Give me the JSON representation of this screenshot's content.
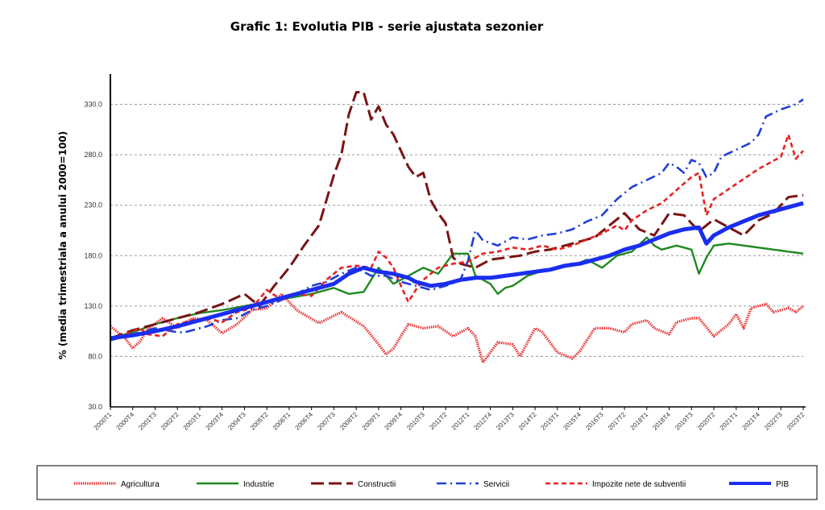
{
  "title": "Grafic 1: Evolutia PIB - serie ajustata sezonier",
  "chart_data": {
    "type": "line",
    "title": "Grafic 1: Evolutia PIB - serie ajustata sezonier",
    "ylabel": "% (media trimestriala a anului 2000=100)",
    "xlabel": "",
    "ylim": [
      30,
      360
    ],
    "yticks": [
      "30.0",
      "80.0",
      "130.0",
      "180.0",
      "230.0",
      "280.0",
      "330.0"
    ],
    "ytick_values": [
      30,
      80,
      130,
      180,
      230,
      280,
      330
    ],
    "grid": "horizontal dashed",
    "legend_position": "bottom",
    "xtick_labels": [
      "2000T1",
      "2000T4",
      "2001T3",
      "2002T2",
      "2003T1",
      "2003T4",
      "2004T3",
      "2005T2",
      "2006T1",
      "2006T4",
      "2007T3",
      "2008T2",
      "2009T1",
      "2009T4",
      "2010T3",
      "2011T2",
      "2012T1",
      "2012T4",
      "2013T3",
      "2014T2",
      "2015T1",
      "2015T4",
      "2016T3",
      "2017T2",
      "2018T1",
      "2018T4",
      "2019T3",
      "2020T2",
      "2021T1",
      "2021T4",
      "2022T3",
      "2023T2"
    ],
    "n_quarters": 94,
    "series": [
      {
        "name": "Agricultura",
        "color": "#e83030",
        "style": "dotted-thick",
        "anchors": [
          [
            0,
            110
          ],
          [
            2,
            98
          ],
          [
            3,
            88
          ],
          [
            4,
            95
          ],
          [
            5,
            107
          ],
          [
            7,
            118
          ],
          [
            9,
            108
          ],
          [
            11,
            118
          ],
          [
            13,
            116
          ],
          [
            15,
            103
          ],
          [
            17,
            112
          ],
          [
            19,
            126
          ],
          [
            21,
            128
          ],
          [
            23,
            142
          ],
          [
            25,
            126
          ],
          [
            28,
            113
          ],
          [
            31,
            124
          ],
          [
            34,
            110
          ],
          [
            36,
            92
          ],
          [
            37,
            82
          ],
          [
            38,
            88
          ],
          [
            40,
            112
          ],
          [
            42,
            108
          ],
          [
            44,
            110
          ],
          [
            46,
            100
          ],
          [
            48,
            108
          ],
          [
            49,
            100
          ],
          [
            50,
            74
          ],
          [
            52,
            94
          ],
          [
            54,
            92
          ],
          [
            55,
            80
          ],
          [
            57,
            108
          ],
          [
            58,
            104
          ],
          [
            60,
            84
          ],
          [
            62,
            78
          ],
          [
            63,
            85
          ],
          [
            65,
            108
          ],
          [
            67,
            108
          ],
          [
            69,
            104
          ],
          [
            70,
            112
          ],
          [
            72,
            116
          ],
          [
            73,
            108
          ],
          [
            75,
            102
          ],
          [
            76,
            114
          ],
          [
            78,
            118
          ],
          [
            79,
            118
          ],
          [
            81,
            100
          ],
          [
            83,
            112
          ],
          [
            84,
            122
          ],
          [
            85,
            108
          ],
          [
            86,
            128
          ],
          [
            88,
            132
          ],
          [
            89,
            124
          ],
          [
            91,
            128
          ],
          [
            92,
            124
          ],
          [
            93,
            130
          ]
        ]
      },
      {
        "name": "Industrie",
        "color": "#1f8a1f",
        "style": "solid",
        "anchors": [
          [
            0,
            98
          ],
          [
            3,
            104
          ],
          [
            6,
            112
          ],
          [
            9,
            118
          ],
          [
            12,
            123
          ],
          [
            15,
            126
          ],
          [
            18,
            130
          ],
          [
            21,
            134
          ],
          [
            24,
            138
          ],
          [
            27,
            142
          ],
          [
            30,
            148
          ],
          [
            32,
            142
          ],
          [
            34,
            144
          ],
          [
            36,
            168
          ],
          [
            38,
            152
          ],
          [
            40,
            160
          ],
          [
            42,
            168
          ],
          [
            44,
            162
          ],
          [
            46,
            182
          ],
          [
            48,
            182
          ],
          [
            49,
            160
          ],
          [
            51,
            152
          ],
          [
            52,
            142
          ],
          [
            53,
            148
          ],
          [
            54,
            150
          ],
          [
            56,
            160
          ],
          [
            58,
            165
          ],
          [
            60,
            168
          ],
          [
            62,
            170
          ],
          [
            64,
            176
          ],
          [
            66,
            168
          ],
          [
            68,
            180
          ],
          [
            70,
            184
          ],
          [
            72,
            198
          ],
          [
            73,
            190
          ],
          [
            74,
            186
          ],
          [
            76,
            190
          ],
          [
            78,
            186
          ],
          [
            79,
            162
          ],
          [
            80,
            178
          ],
          [
            81,
            190
          ],
          [
            83,
            192
          ],
          [
            85,
            190
          ],
          [
            87,
            188
          ],
          [
            89,
            186
          ],
          [
            91,
            184
          ],
          [
            93,
            182
          ]
        ]
      },
      {
        "name": "Constructii",
        "color": "#7a1414",
        "style": "long-dash",
        "anchors": [
          [
            0,
            98
          ],
          [
            3,
            106
          ],
          [
            6,
            112
          ],
          [
            9,
            118
          ],
          [
            12,
            124
          ],
          [
            15,
            132
          ],
          [
            18,
            142
          ],
          [
            20,
            130
          ],
          [
            22,
            150
          ],
          [
            24,
            168
          ],
          [
            26,
            190
          ],
          [
            28,
            210
          ],
          [
            30,
            260
          ],
          [
            31,
            280
          ],
          [
            32,
            320
          ],
          [
            33,
            342
          ],
          [
            34,
            342
          ],
          [
            35,
            315
          ],
          [
            36,
            328
          ],
          [
            37,
            310
          ],
          [
            38,
            300
          ],
          [
            40,
            268
          ],
          [
            41,
            258
          ],
          [
            42,
            262
          ],
          [
            43,
            235
          ],
          [
            44,
            222
          ],
          [
            45,
            212
          ],
          [
            46,
            178
          ],
          [
            47,
            172
          ],
          [
            49,
            168
          ],
          [
            51,
            176
          ],
          [
            53,
            178
          ],
          [
            55,
            180
          ],
          [
            57,
            184
          ],
          [
            59,
            186
          ],
          [
            61,
            190
          ],
          [
            63,
            194
          ],
          [
            65,
            198
          ],
          [
            67,
            210
          ],
          [
            69,
            222
          ],
          [
            71,
            206
          ],
          [
            73,
            200
          ],
          [
            75,
            222
          ],
          [
            77,
            220
          ],
          [
            79,
            204
          ],
          [
            81,
            216
          ],
          [
            83,
            208
          ],
          [
            85,
            200
          ],
          [
            87,
            215
          ],
          [
            89,
            222
          ],
          [
            91,
            238
          ],
          [
            93,
            240
          ]
        ]
      },
      {
        "name": "Servicii",
        "color": "#1f3fd6",
        "style": "dash-dot",
        "anchors": [
          [
            0,
            96
          ],
          [
            3,
            102
          ],
          [
            6,
            108
          ],
          [
            9,
            104
          ],
          [
            10,
            104
          ],
          [
            11,
            106
          ],
          [
            13,
            110
          ],
          [
            15,
            116
          ],
          [
            17,
            118
          ],
          [
            19,
            126
          ],
          [
            21,
            130
          ],
          [
            23,
            136
          ],
          [
            25,
            142
          ],
          [
            27,
            150
          ],
          [
            29,
            154
          ],
          [
            31,
            162
          ],
          [
            33,
            168
          ],
          [
            35,
            160
          ],
          [
            37,
            160
          ],
          [
            39,
            154
          ],
          [
            41,
            150
          ],
          [
            43,
            146
          ],
          [
            45,
            150
          ],
          [
            47,
            156
          ],
          [
            48,
            175
          ],
          [
            49,
            205
          ],
          [
            50,
            195
          ],
          [
            52,
            190
          ],
          [
            54,
            198
          ],
          [
            56,
            196
          ],
          [
            58,
            200
          ],
          [
            60,
            202
          ],
          [
            62,
            206
          ],
          [
            64,
            214
          ],
          [
            66,
            220
          ],
          [
            68,
            236
          ],
          [
            70,
            248
          ],
          [
            72,
            255
          ],
          [
            74,
            262
          ],
          [
            75,
            272
          ],
          [
            76,
            268
          ],
          [
            77,
            262
          ],
          [
            78,
            275
          ],
          [
            79,
            272
          ],
          [
            80,
            258
          ],
          [
            81,
            262
          ],
          [
            82,
            278
          ],
          [
            84,
            285
          ],
          [
            86,
            292
          ],
          [
            87,
            300
          ],
          [
            88,
            318
          ],
          [
            90,
            325
          ],
          [
            92,
            330
          ],
          [
            93,
            335
          ]
        ]
      },
      {
        "name": "Impozite nete de subventii",
        "color": "#e82020",
        "style": "short-dash",
        "anchors": [
          [
            0,
            98
          ],
          [
            2,
            102
          ],
          [
            4,
            108
          ],
          [
            5,
            102
          ],
          [
            7,
            100
          ],
          [
            9,
            112
          ],
          [
            11,
            116
          ],
          [
            13,
            118
          ],
          [
            15,
            114
          ],
          [
            17,
            124
          ],
          [
            19,
            128
          ],
          [
            21,
            146
          ],
          [
            23,
            136
          ],
          [
            25,
            142
          ],
          [
            27,
            140
          ],
          [
            29,
            156
          ],
          [
            31,
            168
          ],
          [
            33,
            170
          ],
          [
            35,
            168
          ],
          [
            36,
            184
          ],
          [
            37,
            178
          ],
          [
            38,
            168
          ],
          [
            39,
            150
          ],
          [
            40,
            134
          ],
          [
            41,
            146
          ],
          [
            42,
            156
          ],
          [
            44,
            168
          ],
          [
            46,
            172
          ],
          [
            48,
            174
          ],
          [
            50,
            182
          ],
          [
            52,
            184
          ],
          [
            54,
            188
          ],
          [
            56,
            186
          ],
          [
            58,
            190
          ],
          [
            60,
            186
          ],
          [
            62,
            190
          ],
          [
            64,
            196
          ],
          [
            66,
            202
          ],
          [
            68,
            210
          ],
          [
            69,
            205
          ],
          [
            70,
            215
          ],
          [
            72,
            225
          ],
          [
            74,
            232
          ],
          [
            76,
            245
          ],
          [
            78,
            258
          ],
          [
            79,
            262
          ],
          [
            80,
            220
          ],
          [
            81,
            236
          ],
          [
            83,
            246
          ],
          [
            85,
            256
          ],
          [
            87,
            266
          ],
          [
            89,
            274
          ],
          [
            90,
            278
          ],
          [
            91,
            300
          ],
          [
            92,
            276
          ],
          [
            93,
            284
          ]
        ]
      },
      {
        "name": "PIB",
        "color": "#1a2ef0",
        "style": "thick-solid",
        "anchors": [
          [
            0,
            98
          ],
          [
            3,
            101
          ],
          [
            6,
            105
          ],
          [
            9,
            110
          ],
          [
            12,
            116
          ],
          [
            15,
            122
          ],
          [
            18,
            128
          ],
          [
            21,
            134
          ],
          [
            24,
            140
          ],
          [
            27,
            146
          ],
          [
            30,
            152
          ],
          [
            32,
            162
          ],
          [
            34,
            168
          ],
          [
            36,
            164
          ],
          [
            38,
            162
          ],
          [
            40,
            158
          ],
          [
            41,
            154
          ],
          [
            43,
            150
          ],
          [
            45,
            152
          ],
          [
            47,
            156
          ],
          [
            49,
            158
          ],
          [
            51,
            158
          ],
          [
            53,
            160
          ],
          [
            55,
            162
          ],
          [
            57,
            164
          ],
          [
            59,
            166
          ],
          [
            61,
            170
          ],
          [
            63,
            172
          ],
          [
            65,
            176
          ],
          [
            67,
            180
          ],
          [
            69,
            186
          ],
          [
            71,
            190
          ],
          [
            73,
            196
          ],
          [
            75,
            202
          ],
          [
            77,
            206
          ],
          [
            79,
            208
          ],
          [
            80,
            192
          ],
          [
            81,
            200
          ],
          [
            83,
            208
          ],
          [
            85,
            214
          ],
          [
            87,
            220
          ],
          [
            89,
            224
          ],
          [
            91,
            228
          ],
          [
            93,
            232
          ]
        ]
      }
    ]
  },
  "legend": {
    "items": [
      "Agricultura",
      "Industrie",
      "Constructii",
      "Servicii",
      "Impozite nete de subventii",
      "PIB"
    ]
  }
}
